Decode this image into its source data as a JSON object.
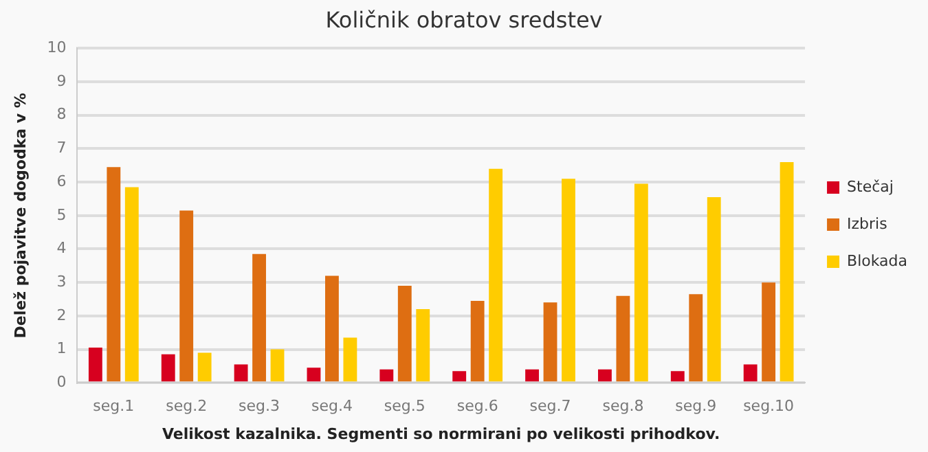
{
  "chart_data": {
    "type": "bar",
    "title": "Količnik obratov sredstev",
    "xlabel": "Velikost kazalnika. Segmenti so normirani po velikosti prihodkov.",
    "ylabel": "Delež pojavitve dogodka v %",
    "categories": [
      "seg.1",
      "seg.2",
      "seg.3",
      "seg.4",
      "seg.5",
      "seg.6",
      "seg.7",
      "seg.8",
      "seg.9",
      "seg.10"
    ],
    "series": [
      {
        "name": "Stečaj",
        "color": "#d7001f",
        "values": [
          1.05,
          0.85,
          0.55,
          0.45,
          0.4,
          0.35,
          0.4,
          0.4,
          0.35,
          0.55
        ]
      },
      {
        "name": "Izbris",
        "color": "#de6e12",
        "values": [
          6.45,
          5.15,
          3.85,
          3.2,
          2.9,
          2.45,
          2.4,
          2.6,
          2.65,
          3.0
        ]
      },
      {
        "name": "Blokada",
        "color": "#ffcc00",
        "values": [
          5.85,
          0.9,
          1.0,
          1.35,
          2.2,
          6.4,
          6.1,
          5.95,
          5.55,
          6.6
        ]
      }
    ],
    "ylim": [
      0,
      10
    ],
    "yticks": [
      0,
      1,
      2,
      3,
      4,
      5,
      6,
      7,
      8,
      9,
      10
    ],
    "grid": "y",
    "legend": "right"
  }
}
